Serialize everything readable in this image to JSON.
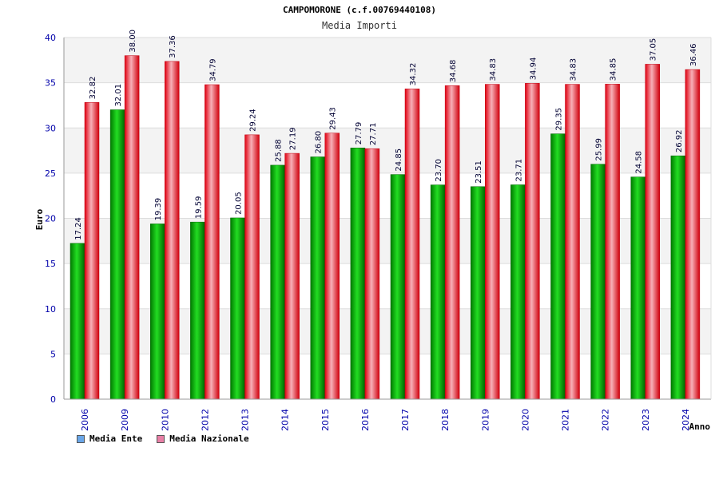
{
  "chart_data": {
    "type": "bar",
    "title": "CAMPOMORONE (c.f.00769440108)",
    "subtitle": "Media Importi",
    "xlabel": "Anno",
    "ylabel": "Euro",
    "ylim": [
      0,
      40
    ],
    "yticks": [
      "0",
      "5",
      "10",
      "15",
      "20",
      "25",
      "30",
      "35",
      "40"
    ],
    "categories": [
      "2006",
      "2009",
      "2010",
      "2012",
      "2013",
      "2014",
      "2015",
      "2016",
      "2017",
      "2018",
      "2019",
      "2020",
      "2021",
      "2022",
      "2023",
      "2024"
    ],
    "series": [
      {
        "name": "Media Ente",
        "color": "#00b000",
        "values": [
          17.24,
          32.01,
          19.39,
          19.59,
          20.05,
          25.88,
          26.8,
          27.79,
          24.85,
          23.7,
          23.51,
          23.71,
          29.35,
          25.99,
          24.58,
          26.92
        ],
        "labels": [
          "17.24",
          "32.01",
          "19.39",
          "19.59",
          "20.05",
          "25.88",
          "26.80",
          "27.79",
          "24.85",
          "23.70",
          "23.51",
          "23.71",
          "29.35",
          "25.99",
          "24.58",
          "26.92"
        ]
      },
      {
        "name": "Media Nazionale",
        "color": "#ee1c24",
        "values": [
          32.82,
          38.0,
          37.36,
          34.79,
          29.24,
          27.19,
          29.43,
          27.71,
          34.32,
          34.68,
          34.83,
          34.94,
          34.83,
          34.85,
          37.05,
          36.46
        ],
        "labels": [
          "32.82",
          "38.00",
          "37.36",
          "34.79",
          "29.24",
          "27.19",
          "29.43",
          "27.71",
          "34.32",
          "34.68",
          "34.83",
          "34.94",
          "34.83",
          "34.85",
          "37.05",
          "36.46"
        ]
      }
    ],
    "legend": [
      {
        "label": "Media Ente",
        "color": "#6aa6e8"
      },
      {
        "label": "Media Nazionale",
        "color": "#e87fa6"
      }
    ],
    "legend_position": "bottom-left",
    "grid": true
  }
}
